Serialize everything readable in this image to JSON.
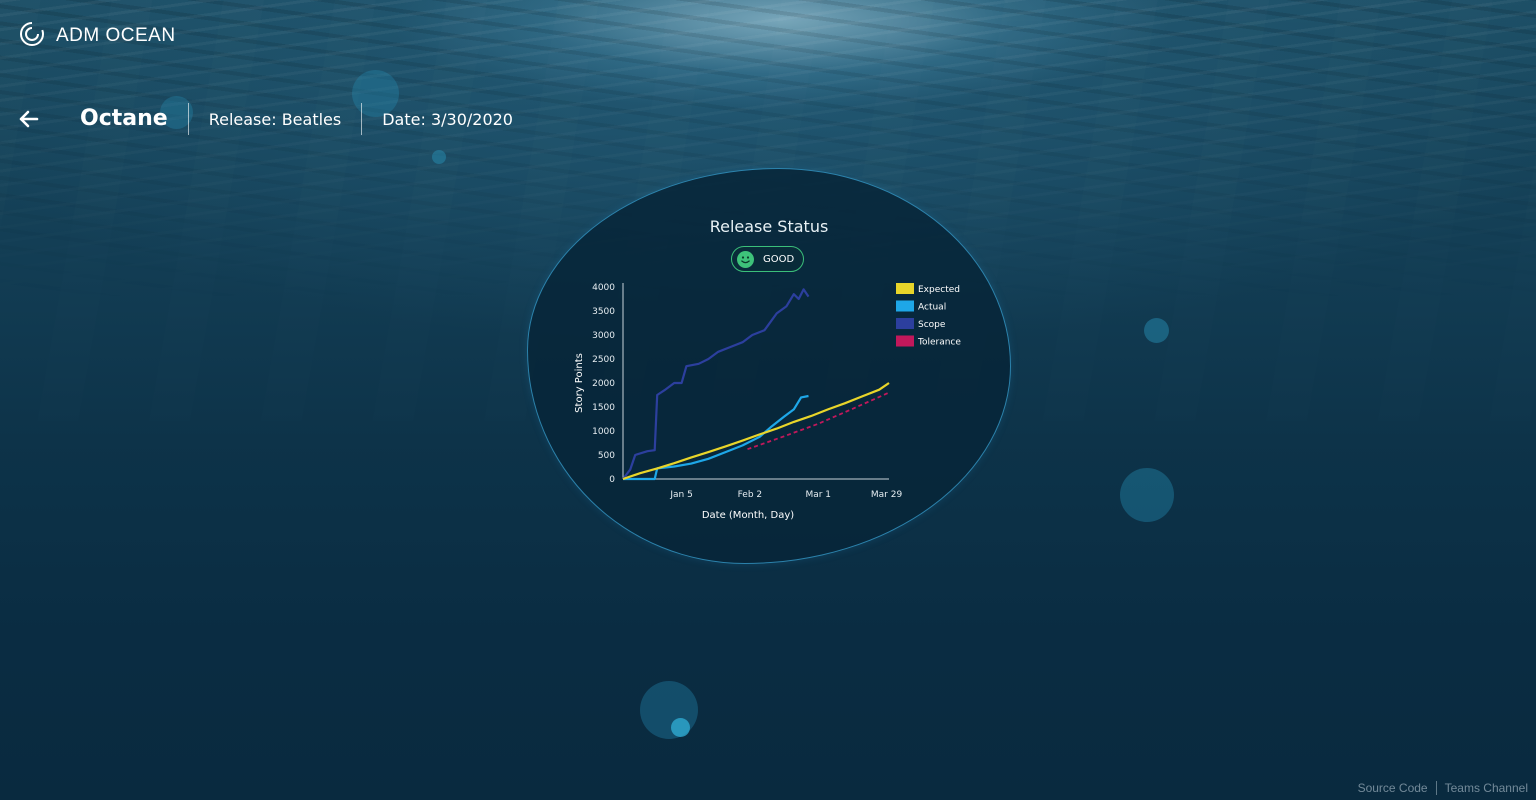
{
  "brand": {
    "title": "ADM OCEAN",
    "logo_icon": "swirl-logo-icon"
  },
  "header": {
    "back_icon": "arrow-left-icon",
    "app_name": "Octane",
    "release": "Release: Beatles",
    "date": "Date: 3/30/2020"
  },
  "status": {
    "title": "Release Status",
    "badge": "GOOD",
    "badge_icon": "smiley-icon",
    "badge_color": "#3ec27a"
  },
  "colors": {
    "expected": "#e8d52a",
    "actual": "#1ea7e8",
    "scope": "#2c3f9e",
    "tolerance": "#c2185b",
    "panel_border": "#3caadc"
  },
  "chart_data": {
    "type": "line",
    "xlabel": "Date (Month, Day)",
    "ylabel": "Story Points",
    "ylim": [
      0,
      4000
    ],
    "yticks": [
      0,
      500,
      1000,
      1500,
      2000,
      2500,
      3000,
      3500,
      4000
    ],
    "xticks": [
      "Jan 5",
      "Feb 2",
      "Mar 1",
      "Mar 29"
    ],
    "xlim": [
      "2019-12-12",
      "2020-03-30"
    ],
    "legend": "right",
    "grid": false,
    "series": [
      {
        "name": "Expected",
        "style": "solid",
        "points": [
          [
            "2019-12-12",
            0
          ],
          [
            "2019-12-19",
            120
          ],
          [
            "2019-12-26",
            220
          ],
          [
            "2020-01-02",
            330
          ],
          [
            "2020-01-09",
            450
          ],
          [
            "2020-01-16",
            560
          ],
          [
            "2020-01-23",
            680
          ],
          [
            "2020-01-30",
            800
          ],
          [
            "2020-02-06",
            930
          ],
          [
            "2020-02-13",
            1050
          ],
          [
            "2020-02-20",
            1190
          ],
          [
            "2020-02-27",
            1310
          ],
          [
            "2020-03-05",
            1450
          ],
          [
            "2020-03-12",
            1580
          ],
          [
            "2020-03-19",
            1720
          ],
          [
            "2020-03-26",
            1860
          ],
          [
            "2020-03-30",
            2000
          ]
        ]
      },
      {
        "name": "Actual",
        "style": "solid",
        "points": [
          [
            "2019-12-12",
            0
          ],
          [
            "2019-12-25",
            0
          ],
          [
            "2019-12-26",
            220
          ],
          [
            "2020-01-02",
            260
          ],
          [
            "2020-01-09",
            320
          ],
          [
            "2020-01-16",
            420
          ],
          [
            "2020-01-23",
            560
          ],
          [
            "2020-01-30",
            700
          ],
          [
            "2020-02-06",
            880
          ],
          [
            "2020-02-11",
            1100
          ],
          [
            "2020-02-16",
            1300
          ],
          [
            "2020-02-20",
            1450
          ],
          [
            "2020-02-23",
            1700
          ],
          [
            "2020-02-26",
            1730
          ]
        ]
      },
      {
        "name": "Scope",
        "style": "solid",
        "points": [
          [
            "2019-12-12",
            0
          ],
          [
            "2019-12-15",
            200
          ],
          [
            "2019-12-17",
            500
          ],
          [
            "2019-12-22",
            580
          ],
          [
            "2019-12-25",
            600
          ],
          [
            "2019-12-26",
            1750
          ],
          [
            "2019-12-29",
            1850
          ],
          [
            "2020-01-02",
            2000
          ],
          [
            "2020-01-05",
            2000
          ],
          [
            "2020-01-07",
            2350
          ],
          [
            "2020-01-12",
            2400
          ],
          [
            "2020-01-16",
            2500
          ],
          [
            "2020-01-20",
            2650
          ],
          [
            "2020-01-25",
            2750
          ],
          [
            "2020-01-30",
            2850
          ],
          [
            "2020-02-03",
            3000
          ],
          [
            "2020-02-08",
            3100
          ],
          [
            "2020-02-13",
            3450
          ],
          [
            "2020-02-17",
            3600
          ],
          [
            "2020-02-20",
            3850
          ],
          [
            "2020-02-22",
            3750
          ],
          [
            "2020-02-24",
            3950
          ],
          [
            "2020-02-26",
            3800
          ]
        ]
      },
      {
        "name": "Tolerance",
        "style": "dashed",
        "points": [
          [
            "2020-02-01",
            620
          ],
          [
            "2020-02-15",
            870
          ],
          [
            "2020-03-01",
            1150
          ],
          [
            "2020-03-15",
            1460
          ],
          [
            "2020-03-30",
            1800
          ]
        ]
      }
    ]
  },
  "footer": {
    "source_code": "Source Code",
    "teams_channel": "Teams Channel"
  }
}
